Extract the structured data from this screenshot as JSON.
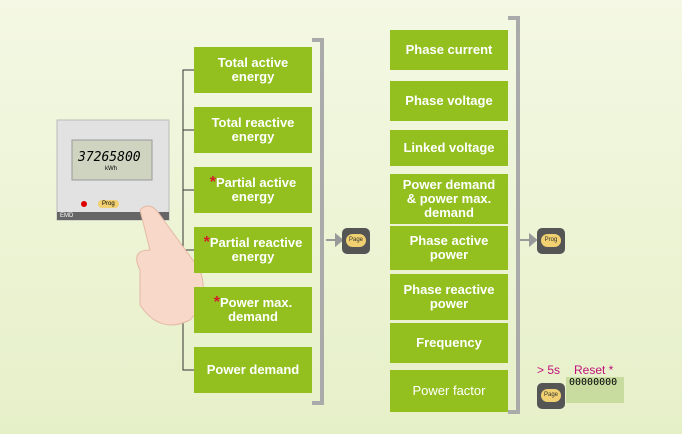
{
  "device": {
    "reading": "37265800",
    "unit": "kWh",
    "button": "Prog",
    "brand": "EMD"
  },
  "left_menu": [
    {
      "label": "Total active energy"
    },
    {
      "label": "Total reactive energy"
    },
    {
      "asterisk": "*",
      "label": "Partial active energy"
    },
    {
      "asterisk": "*",
      "label": "Partial reactive energy"
    },
    {
      "asterisk": "*",
      "label": "Power max. demand"
    },
    {
      "label": "Power demand"
    }
  ],
  "right_menu": [
    {
      "label": "Phase current"
    },
    {
      "label": "Phase voltage"
    },
    {
      "label": "Linked voltage"
    },
    {
      "label": "Power demand & power max. demand"
    },
    {
      "label": "Phase active power"
    },
    {
      "label": "Phase reactive power"
    },
    {
      "label": "Frequency"
    },
    {
      "label": "Power factor"
    }
  ],
  "page_button": "Page",
  "prog_button": "Prog",
  "reset": {
    "time": "> 5s",
    "label": "Reset *",
    "display": "00000000",
    "button": "Page"
  }
}
